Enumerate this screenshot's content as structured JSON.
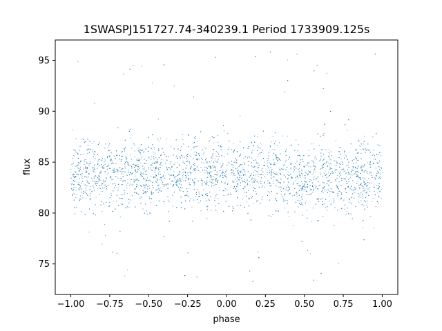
{
  "chart_data": {
    "type": "scatter",
    "title": "1SWASPJ151727.74-340239.1 Period 1733909.125s",
    "xlabel": "phase",
    "ylabel": "flux",
    "xlim": [
      -1.1,
      1.1
    ],
    "ylim": [
      72.0,
      97.0
    ],
    "x_ticks": [
      -1.0,
      -0.75,
      -0.5,
      -0.25,
      0.0,
      0.25,
      0.5,
      0.75,
      1.0
    ],
    "x_tick_labels": [
      "−1.00",
      "−0.75",
      "−0.50",
      "−0.25",
      "0.00",
      "0.25",
      "0.50",
      "0.75",
      "1.00"
    ],
    "y_ticks": [
      75,
      80,
      85,
      90,
      95
    ],
    "y_tick_labels": [
      "75",
      "80",
      "85",
      "90",
      "95"
    ],
    "grid": false,
    "legend": "none",
    "series": [
      {
        "color": "#1f77b4",
        "x_range": [
          -1.0,
          1.0
        ],
        "median_flux": 84.0,
        "typical_flux_range": [
          79.0,
          88.5
        ],
        "outlier_flux_range": [
          73.0,
          96.0
        ],
        "points": [
          {
            "x": -1.0,
            "y": 84.0
          },
          {
            "x": -0.9,
            "y": 84.0
          },
          {
            "x": -0.8,
            "y": 84.5
          },
          {
            "x": -0.7,
            "y": 84.0
          },
          {
            "x": -0.6,
            "y": 84.0
          },
          {
            "x": -0.5,
            "y": 84.5
          },
          {
            "x": -0.4,
            "y": 84.0
          },
          {
            "x": -0.3,
            "y": 84.0
          },
          {
            "x": -0.2,
            "y": 84.0
          },
          {
            "x": -0.1,
            "y": 83.5
          },
          {
            "x": 0.0,
            "y": 83.5
          },
          {
            "x": 0.1,
            "y": 84.0
          },
          {
            "x": 0.2,
            "y": 84.0
          },
          {
            "x": 0.3,
            "y": 84.0
          },
          {
            "x": 0.4,
            "y": 84.0
          },
          {
            "x": 0.5,
            "y": 84.5
          },
          {
            "x": 0.6,
            "y": 84.0
          },
          {
            "x": 0.7,
            "y": 84.0
          },
          {
            "x": 0.8,
            "y": 84.0
          },
          {
            "x": 0.9,
            "y": 84.0
          },
          {
            "x": 1.0,
            "y": 84.0
          }
        ]
      }
    ]
  }
}
